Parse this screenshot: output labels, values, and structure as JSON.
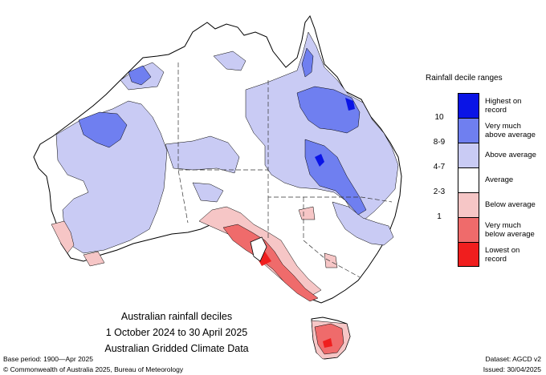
{
  "legend": {
    "title": "Rainfall decile ranges",
    "categories": [
      {
        "label": "Highest on record",
        "color": "#0a14e6"
      },
      {
        "label": "Very much above average",
        "color": "#6f7ff0"
      },
      {
        "label": "Above average",
        "color": "#c9cbf4"
      },
      {
        "label": "Average",
        "color": "#ffffff"
      },
      {
        "label": "Below average",
        "color": "#f6c6c6"
      },
      {
        "label": "Very much below average",
        "color": "#ef6b6b"
      },
      {
        "label": "Lowest on record",
        "color": "#f01e1e"
      }
    ],
    "deciles": [
      "10",
      "8-9",
      "4-7",
      "2-3",
      "1"
    ]
  },
  "caption": {
    "line1": "Australian rainfall deciles",
    "line2": "1 October 2024 to 30 April 2025",
    "line3": "Australian Gridded Climate Data"
  },
  "footer": {
    "base_period": "Base period: 1900—Apr 2025",
    "dataset": "Dataset: AGCD v2",
    "copyright": "© Commonwealth of Australia 2025, Bureau of Meteorology",
    "issued": "Issued: 30/04/2025"
  }
}
